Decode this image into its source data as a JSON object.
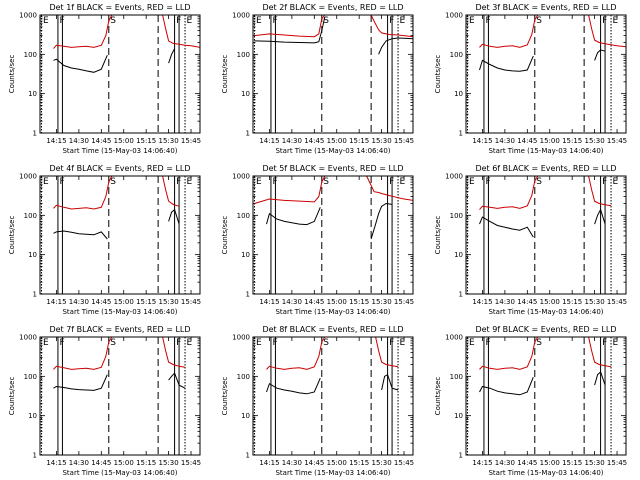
{
  "chart_data": {
    "type": "line",
    "xlabel": "Start Time (15-May-03 14:06:40)",
    "ylabel": "Counts/sec",
    "xticks": [
      "14:15",
      "14:30",
      "14:45",
      "15:00",
      "15:15",
      "15:30",
      "15:45"
    ],
    "x_tick_minutes": [
      15,
      30,
      45,
      60,
      75,
      90,
      105
    ],
    "x_range_minutes": [
      4,
      111
    ],
    "yticks": [
      "1",
      "10",
      "100",
      "1000"
    ],
    "y_range": [
      1,
      1000
    ],
    "markers": [
      "E",
      "F",
      "S",
      "F",
      "E"
    ],
    "marker_minutes": [
      5,
      16,
      50,
      94,
      101
    ],
    "series_names": [
      "Events",
      "LLD"
    ],
    "series_colors": [
      "#000000",
      "#cc0000"
    ],
    "panels": [
      {
        "title": "Det 1f BLACK = Events, RED = LLD",
        "segments": [
          {
            "series": "Events",
            "x": [
              13,
              15,
              20,
              25,
              30,
              35,
              40,
              45,
              49
            ],
            "y": [
              70,
              75,
              52,
              45,
              42,
              38,
              35,
              42,
              95
            ]
          },
          {
            "series": "Events",
            "x": [
              90,
              92,
              94
            ],
            "y": [
              60,
              100,
              140
            ]
          },
          {
            "series": "LLD",
            "x": [
              13,
              15,
              20,
              25,
              30,
              35,
              40,
              45,
              48,
              50,
              52
            ],
            "y": [
              140,
              170,
              160,
              150,
              155,
              160,
              150,
              170,
              300,
              700,
              1000
            ]
          },
          {
            "series": "LLD",
            "x": [
              86,
              88,
              90,
              93,
              97,
              101,
              105,
              111
            ],
            "y": [
              1000,
              450,
              220,
              190,
              180,
              170,
              165,
              150
            ]
          }
        ]
      },
      {
        "title": "Det 2f BLACK = Events, RED = LLD",
        "segments": [
          {
            "series": "Events",
            "x": [
              5,
              15,
              25,
              35,
              45,
              48,
              50,
              52
            ],
            "y": [
              220,
              215,
              205,
              200,
              195,
              210,
              400,
              900
            ]
          },
          {
            "series": "Events",
            "x": [
              88,
              90,
              93,
              97,
              101,
              105,
              111
            ],
            "y": [
              100,
              150,
              220,
              250,
              260,
              255,
              250
            ]
          },
          {
            "series": "LLD",
            "x": [
              5,
              15,
              25,
              35,
              45,
              48,
              50,
              52
            ],
            "y": [
              300,
              330,
              310,
              290,
              280,
              330,
              800,
              1000
            ]
          },
          {
            "series": "LLD",
            "x": [
              83,
              85,
              88,
              90,
              95,
              101,
              105,
              111
            ],
            "y": [
              1000,
              700,
              420,
              350,
              320,
              310,
              300,
              280
            ]
          }
        ]
      },
      {
        "title": "Det 3f BLACK = Events, RED = LLD",
        "segments": [
          {
            "series": "Events",
            "x": [
              13,
              15,
              20,
              25,
              30,
              35,
              40,
              45,
              49
            ],
            "y": [
              40,
              70,
              55,
              45,
              40,
              38,
              37,
              40,
              90
            ]
          },
          {
            "series": "Events",
            "x": [
              90,
              92,
              94,
              97
            ],
            "y": [
              70,
              110,
              130,
              120
            ]
          },
          {
            "series": "LLD",
            "x": [
              13,
              15,
              20,
              25,
              30,
              35,
              40,
              45,
              48,
              50,
              52
            ],
            "y": [
              150,
              180,
              160,
              150,
              160,
              165,
              150,
              175,
              320,
              750,
              1000
            ]
          },
          {
            "series": "LLD",
            "x": [
              86,
              88,
              90,
              93,
              97,
              101,
              105,
              111
            ],
            "y": [
              1000,
              450,
              230,
              200,
              185,
              175,
              165,
              155
            ]
          }
        ]
      },
      {
        "title": "Det 4f BLACK = Events, RED = LLD",
        "segments": [
          {
            "series": "Events",
            "x": [
              13,
              15,
              20,
              25,
              30,
              35,
              40,
              45,
              49
            ],
            "y": [
              35,
              38,
              40,
              37,
              34,
              33,
              32,
              38,
              25
            ]
          },
          {
            "series": "Events",
            "x": [
              90,
              92,
              94,
              97
            ],
            "y": [
              70,
              120,
              140,
              60
            ]
          },
          {
            "series": "LLD",
            "x": [
              13,
              15,
              20,
              25,
              30,
              35,
              40,
              45,
              48,
              50,
              52
            ],
            "y": [
              150,
              180,
              160,
              145,
              150,
              155,
              145,
              160,
              300,
              700,
              1000
            ]
          },
          {
            "series": "LLD",
            "x": [
              86,
              88,
              90,
              93,
              97
            ],
            "y": [
              1000,
              450,
              230,
              190,
              170
            ]
          }
        ]
      },
      {
        "title": "Det 5f BLACK = Events, RED = LLD",
        "segments": [
          {
            "series": "Events",
            "x": [
              13,
              15,
              20,
              25,
              30,
              35,
              40,
              45,
              49
            ],
            "y": [
              60,
              110,
              80,
              70,
              65,
              60,
              58,
              70,
              160
            ]
          },
          {
            "series": "Events",
            "x": [
              83,
              86,
              88,
              90,
              93,
              97
            ],
            "y": [
              25,
              60,
              110,
              170,
              200,
              190
            ]
          },
          {
            "series": "LLD",
            "x": [
              5,
              15,
              25,
              35,
              45,
              48,
              50,
              52
            ],
            "y": [
              200,
              260,
              240,
              230,
              220,
              300,
              700,
              1000
            ]
          },
          {
            "series": "LLD",
            "x": [
              80,
              85,
              88,
              90,
              95,
              101,
              105,
              111
            ],
            "y": [
              1000,
              400,
              380,
              360,
              320,
              280,
              260,
              240
            ]
          }
        ]
      },
      {
        "title": "Det 6f BLACK = Events, RED = LLD",
        "segments": [
          {
            "series": "Events",
            "x": [
              13,
              15,
              20,
              25,
              30,
              35,
              40,
              45,
              49
            ],
            "y": [
              60,
              90,
              70,
              55,
              50,
              45,
              42,
              50,
              28
            ]
          },
          {
            "series": "Events",
            "x": [
              90,
              92,
              94,
              97
            ],
            "y": [
              60,
              100,
              140,
              60
            ]
          },
          {
            "series": "LLD",
            "x": [
              13,
              15,
              20,
              25,
              30,
              35,
              40,
              45,
              48,
              50,
              52
            ],
            "y": [
              140,
              170,
              160,
              150,
              160,
              165,
              150,
              175,
              320,
              750,
              1000
            ]
          },
          {
            "series": "LLD",
            "x": [
              86,
              88,
              90,
              93,
              97,
              101
            ],
            "y": [
              1000,
              450,
              230,
              200,
              185,
              175
            ]
          }
        ]
      },
      {
        "title": "Det 7f BLACK = Events, RED = LLD",
        "segments": [
          {
            "series": "Events",
            "x": [
              13,
              15,
              20,
              25,
              30,
              35,
              40,
              45,
              49
            ],
            "y": [
              50,
              55,
              52,
              48,
              46,
              45,
              44,
              50,
              110
            ]
          },
          {
            "series": "Events",
            "x": [
              90,
              92,
              94,
              97,
              101
            ],
            "y": [
              80,
              100,
              120,
              60,
              50
            ]
          },
          {
            "series": "LLD",
            "x": [
              13,
              15,
              20,
              25,
              30,
              35,
              40,
              45,
              48,
              50,
              52
            ],
            "y": [
              150,
              180,
              165,
              150,
              155,
              160,
              150,
              170,
              320,
              750,
              1000
            ]
          },
          {
            "series": "LLD",
            "x": [
              86,
              88,
              90,
              93,
              97,
              101
            ],
            "y": [
              1000,
              450,
              230,
              200,
              180,
              170
            ]
          }
        ]
      },
      {
        "title": "Det 8f BLACK = Events, RED = LLD",
        "segments": [
          {
            "series": "Events",
            "x": [
              13,
              15,
              20,
              25,
              30,
              35,
              40,
              45,
              49
            ],
            "y": [
              40,
              65,
              50,
              45,
              42,
              38,
              36,
              40,
              90
            ]
          },
          {
            "series": "Events",
            "x": [
              90,
              92,
              94,
              97,
              101
            ],
            "y": [
              45,
              100,
              110,
              50,
              45
            ]
          },
          {
            "series": "LLD",
            "x": [
              13,
              15,
              20,
              25,
              30,
              35,
              40,
              45,
              48,
              50,
              52
            ],
            "y": [
              150,
              180,
              160,
              150,
              160,
              165,
              150,
              175,
              320,
              750,
              1000
            ]
          },
          {
            "series": "LLD",
            "x": [
              86,
              88,
              90,
              93,
              97,
              101
            ],
            "y": [
              1000,
              450,
              230,
              200,
              185,
              175
            ]
          }
        ]
      },
      {
        "title": "Det 9f BLACK = Events, RED = LLD",
        "segments": [
          {
            "series": "Events",
            "x": [
              13,
              15,
              20,
              25,
              30,
              35,
              40,
              45,
              49
            ],
            "y": [
              40,
              55,
              50,
              42,
              38,
              36,
              34,
              40,
              95
            ]
          },
          {
            "series": "Events",
            "x": [
              90,
              92,
              94,
              97
            ],
            "y": [
              60,
              110,
              130,
              60
            ]
          },
          {
            "series": "LLD",
            "x": [
              13,
              15,
              20,
              25,
              30,
              35,
              40,
              45,
              48,
              50,
              52
            ],
            "y": [
              150,
              180,
              160,
              150,
              160,
              165,
              150,
              175,
              320,
              750,
              1000
            ]
          },
          {
            "series": "LLD",
            "x": [
              86,
              88,
              90,
              93,
              97,
              101
            ],
            "y": [
              1000,
              450,
              230,
              200,
              185,
              175
            ]
          }
        ]
      }
    ]
  }
}
